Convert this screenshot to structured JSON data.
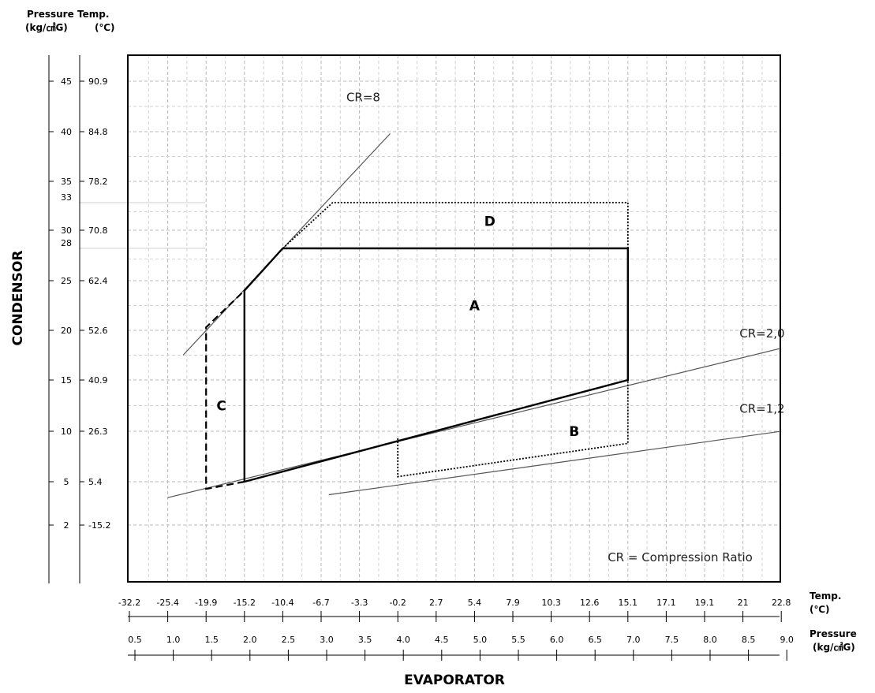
{
  "chart_data": {
    "type": "line",
    "title": "",
    "xlabel": "EVAPORATOR",
    "ylabel": "CONDENSOR",
    "grid": true,
    "y_axis_headers": {
      "pressure": "Pressure",
      "pressure_unit": "(kg/㎠G)",
      "temp": "Temp.",
      "temp_unit": "(℃)"
    },
    "x_axis_headers": {
      "temp": "Temp.",
      "temp_unit": "(℃)",
      "pressure": "Pressure",
      "pressure_unit": "(kg/㎠G)"
    },
    "evaporator_temp_ticks": [
      "-32.2",
      "-25.4",
      "-19.9",
      "-15.2",
      "-10.4",
      "-6.7",
      "-3.3",
      "-0.2",
      "2.7",
      "5.4",
      "7.9",
      "10.3",
      "12.6",
      "15.1",
      "17.1",
      "19.1",
      "21",
      "22.8"
    ],
    "evaporator_pressure_ticks": [
      "0.5",
      "1.0",
      "1.5",
      "2.0",
      "2.5",
      "3.0",
      "3.5",
      "4.0",
      "4.5",
      "5.0",
      "5.5",
      "6.0",
      "6.5",
      "7.0",
      "7.5",
      "8.0",
      "8.5",
      "9.0"
    ],
    "condenser_ticks": [
      {
        "pressure": "45",
        "temp": "90.9"
      },
      {
        "pressure": "40",
        "temp": "84.8"
      },
      {
        "pressure": "35",
        "temp": "78.2"
      },
      {
        "pressure": "33",
        "temp": ""
      },
      {
        "pressure": "30",
        "temp": "70.8"
      },
      {
        "pressure": "28",
        "temp": ""
      },
      {
        "pressure": "25",
        "temp": "62.4"
      },
      {
        "pressure": "20",
        "temp": "52.6"
      },
      {
        "pressure": "15",
        "temp": "40.9"
      },
      {
        "pressure": "10",
        "temp": "26.3"
      },
      {
        "pressure": "5",
        "temp": "5.4"
      },
      {
        "pressure": "2",
        "temp": "-15.2"
      }
    ],
    "series": [
      {
        "name": "CR=8",
        "x": [
          1.2,
          3.9
        ],
        "y": [
          17.5,
          39.8
        ]
      },
      {
        "name": "CR=2,0",
        "x": [
          1.0,
          9.0
        ],
        "y": [
          3.9,
          18.2
        ]
      },
      {
        "name": "CR=1,2",
        "x": [
          3.1,
          9.0
        ],
        "y": [
          4.1,
          10.0
        ]
      }
    ],
    "regions": [
      {
        "label": "A",
        "x": [
          2.0,
          2.0,
          2.5,
          7.0,
          7.0,
          2.0
        ],
        "y": [
          5.0,
          24.0,
          28.0,
          28.0,
          15.0,
          5.0
        ],
        "style": "solid",
        "label_at": [
          5.0,
          22.5
        ]
      },
      {
        "label": "B",
        "x": [
          4.0,
          4.0,
          7.0,
          7.0
        ],
        "y": [
          9.3,
          5.5,
          8.8,
          15.0
        ],
        "style": "dotted",
        "label_at": [
          6.3,
          10.0
        ]
      },
      {
        "label": "C",
        "x": [
          2.0,
          1.5,
          1.5,
          2.0
        ],
        "y": [
          5.0,
          4.5,
          20.3,
          24.0
        ],
        "style": "dashed",
        "label_at": [
          1.7,
          12.5
        ]
      },
      {
        "label": "D",
        "x": [
          2.5,
          3.15,
          7.0,
          7.0
        ],
        "y": [
          28.0,
          33.0,
          33.0,
          28.0
        ],
        "style": "dotted",
        "label_at": [
          5.2,
          31.0
        ]
      }
    ],
    "annotation": "CR = Compression Ratio"
  }
}
